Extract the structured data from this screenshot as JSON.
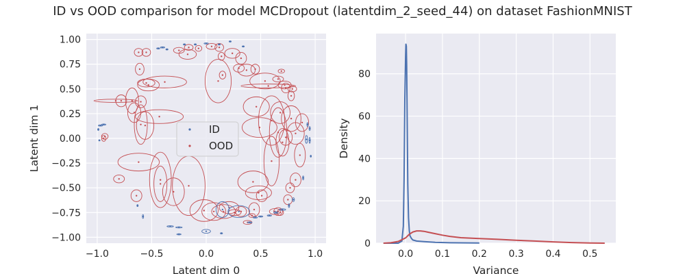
{
  "title": "ID vs OOD comparison for model MCDropout (latentdim_2_seed_44) on dataset FashionMNIST",
  "colors": {
    "id": "#4c72b0",
    "ood": "#c44e52",
    "axes_bg": "#eaeaf2",
    "grid": "#ffffff"
  },
  "chart_data": [
    {
      "type": "scatter",
      "xlabel": "Latent dim 0",
      "ylabel": "Latent dim 1",
      "xlim": [
        -1.1,
        1.1
      ],
      "ylim": [
        -1.06,
        1.06
      ],
      "xticks": [
        -1.0,
        -0.5,
        0.0,
        0.5,
        1.0
      ],
      "xtick_labels": [
        "−1.0",
        "−0.5",
        "0.0",
        "0.5",
        "1.0"
      ],
      "yticks": [
        1.0,
        0.75,
        0.5,
        0.25,
        0.0,
        -0.25,
        -0.5,
        -0.75,
        -1.0
      ],
      "ytick_labels": [
        "1.00",
        "0.75",
        "0.50",
        "0.25",
        "0.00",
        "−0.25",
        "−0.50",
        "−0.75",
        "−1.00"
      ],
      "grid": true,
      "legend": {
        "position": "center",
        "entries": [
          "ID",
          "OOD"
        ]
      },
      "series": [
        {
          "name": "ID",
          "note_shape": "points with uncertainty ellipses [x, y, rx, ry]",
          "ellipses": [
            [
              -0.97,
              0.13,
              0.02,
              0.006
            ],
            [
              -0.94,
              0.14,
              0.02,
              0.006
            ],
            [
              -0.99,
              0.09,
              0.006,
              0.01
            ],
            [
              -0.98,
              -0.02,
              0.006,
              0.006
            ],
            [
              0.93,
              0.14,
              0.006,
              0.02
            ],
            [
              0.95,
              0.1,
              0.006,
              0.02
            ],
            [
              0.95,
              -0.02,
              0.006,
              0.03
            ],
            [
              0.92,
              -0.01,
              0.01,
              0.04
            ],
            [
              0.96,
              -0.18,
              0.004,
              0.01
            ],
            [
              0.89,
              -0.4,
              0.006,
              0.02
            ],
            [
              0.8,
              -0.62,
              0.01,
              0.02
            ],
            [
              0.76,
              -0.68,
              0.006,
              0.02
            ],
            [
              0.7,
              -0.72,
              0.03,
              0.008
            ],
            [
              0.64,
              -0.75,
              0.02,
              0.008
            ],
            [
              0.58,
              -0.78,
              0.02,
              0.006
            ],
            [
              0.5,
              -0.79,
              0.02,
              0.006
            ],
            [
              0.45,
              -0.8,
              0.02,
              0.006
            ],
            [
              0.4,
              -0.85,
              0.02,
              0.006
            ],
            [
              0.3,
              -0.74,
              0.1,
              0.06
            ],
            [
              0.15,
              -0.72,
              0.06,
              0.08
            ],
            [
              0.14,
              -0.96,
              0.01,
              0.006
            ],
            [
              0.0,
              -0.94,
              0.04,
              0.02
            ],
            [
              -0.25,
              -0.9,
              0.03,
              0.006
            ],
            [
              -0.33,
              -0.89,
              0.03,
              0.006
            ],
            [
              -0.25,
              -0.97,
              0.02,
              0.006
            ],
            [
              -0.58,
              -0.79,
              0.006,
              0.02
            ],
            [
              -0.63,
              -0.68,
              0.006,
              0.01
            ],
            [
              -0.44,
              0.91,
              0.015,
              0.006
            ],
            [
              -0.4,
              0.92,
              0.02,
              0.006
            ],
            [
              -0.36,
              0.9,
              0.01,
              0.006
            ],
            [
              -0.2,
              0.95,
              0.01,
              0.006
            ],
            [
              -0.1,
              0.95,
              0.01,
              0.006
            ],
            [
              0.0,
              0.96,
              0.02,
              0.006
            ],
            [
              0.22,
              0.98,
              0.01,
              0.006
            ],
            [
              0.12,
              0.95,
              0.01,
              0.006
            ],
            [
              0.34,
              0.93,
              0.01,
              0.006
            ]
          ]
        },
        {
          "name": "OOD",
          "note_shape": "points with uncertainty ellipses [x, y, rx, ry]",
          "ellipses": [
            [
              -0.83,
              0.38,
              0.2,
              0.016
            ],
            [
              -0.78,
              0.38,
              0.05,
              0.06
            ],
            [
              -0.68,
              0.38,
              0.06,
              0.13
            ],
            [
              -0.6,
              0.37,
              0.05,
              0.06
            ],
            [
              -0.66,
              0.26,
              0.06,
              0.1
            ],
            [
              -0.6,
              0.14,
              0.06,
              0.2
            ],
            [
              -0.56,
              0.13,
              0.08,
              0.14
            ],
            [
              -0.43,
              0.22,
              0.22,
              0.07
            ],
            [
              -0.61,
              0.7,
              0.04,
              0.06
            ],
            [
              -0.53,
              0.54,
              0.1,
              0.06
            ],
            [
              -0.55,
              0.56,
              0.08,
              0.04
            ],
            [
              -0.38,
              0.57,
              0.2,
              0.06
            ],
            [
              -0.62,
              0.87,
              0.04,
              0.04
            ],
            [
              -0.55,
              0.87,
              0.04,
              0.04
            ],
            [
              -0.93,
              0.02,
              0.03,
              0.03
            ],
            [
              -0.94,
              0.0,
              0.02,
              0.03
            ],
            [
              -0.62,
              -0.24,
              0.19,
              0.09
            ],
            [
              -0.42,
              -0.42,
              0.1,
              0.28
            ],
            [
              -0.42,
              -0.46,
              0.06,
              0.18
            ],
            [
              -0.3,
              -0.54,
              0.1,
              0.14
            ],
            [
              -0.16,
              -0.48,
              0.15,
              0.3
            ],
            [
              -0.8,
              -0.41,
              0.05,
              0.04
            ],
            [
              -0.64,
              -0.58,
              0.05,
              0.06
            ],
            [
              -0.25,
              0.89,
              0.05,
              0.03
            ],
            [
              -0.16,
              0.92,
              0.04,
              0.03
            ],
            [
              -0.07,
              0.91,
              0.03,
              0.03
            ],
            [
              -0.17,
              0.85,
              0.08,
              0.05
            ],
            [
              0.05,
              0.93,
              0.05,
              0.03
            ],
            [
              0.12,
              0.92,
              0.04,
              0.04
            ],
            [
              0.14,
              0.83,
              0.03,
              0.04
            ],
            [
              0.24,
              0.86,
              0.07,
              0.05
            ],
            [
              0.32,
              0.81,
              0.05,
              0.06
            ],
            [
              0.3,
              0.71,
              0.05,
              0.04
            ],
            [
              0.37,
              0.69,
              0.08,
              0.06
            ],
            [
              0.45,
              0.7,
              0.04,
              0.05
            ],
            [
              0.15,
              0.64,
              0.03,
              0.04
            ],
            [
              0.11,
              0.58,
              0.12,
              0.22
            ],
            [
              0.54,
              0.58,
              0.14,
              0.08
            ],
            [
              0.57,
              0.53,
              0.25,
              0.02
            ],
            [
              0.66,
              0.6,
              0.05,
              0.03
            ],
            [
              0.72,
              0.54,
              0.06,
              0.04
            ],
            [
              0.73,
              0.51,
              0.04,
              0.05
            ],
            [
              0.79,
              0.5,
              0.04,
              0.03
            ],
            [
              0.69,
              0.68,
              0.03,
              0.02
            ],
            [
              0.78,
              0.43,
              0.03,
              0.05
            ],
            [
              0.68,
              0.26,
              0.09,
              0.11
            ],
            [
              0.78,
              0.2,
              0.09,
              0.13
            ],
            [
              0.6,
              0.18,
              0.12,
              0.25
            ],
            [
              0.46,
              0.32,
              0.12,
              0.1
            ],
            [
              0.49,
              0.11,
              0.16,
              0.1
            ],
            [
              0.66,
              0.06,
              0.08,
              0.25
            ],
            [
              0.7,
              -0.04,
              0.06,
              0.14
            ],
            [
              0.73,
              0.01,
              0.06,
              0.08
            ],
            [
              0.82,
              0.05,
              0.08,
              0.11
            ],
            [
              0.88,
              0.16,
              0.06,
              0.09
            ],
            [
              0.86,
              -0.17,
              0.05,
              0.12
            ],
            [
              0.82,
              -0.42,
              0.05,
              0.07
            ],
            [
              0.77,
              -0.5,
              0.04,
              0.05
            ],
            [
              0.75,
              -0.62,
              0.04,
              0.05
            ],
            [
              0.63,
              -0.74,
              0.05,
              0.03
            ],
            [
              0.66,
              -0.74,
              0.04,
              0.04
            ],
            [
              0.68,
              -0.75,
              0.03,
              0.03
            ],
            [
              0.43,
              -0.44,
              0.14,
              0.11
            ],
            [
              0.48,
              -0.55,
              0.12,
              0.07
            ],
            [
              0.6,
              -0.23,
              0.07,
              0.25
            ],
            [
              0.44,
              -0.72,
              0.05,
              0.07
            ],
            [
              0.51,
              -0.58,
              0.05,
              0.06
            ],
            [
              0.32,
              -0.74,
              0.05,
              0.05
            ],
            [
              -0.02,
              -0.73,
              0.13,
              0.11
            ],
            [
              0.07,
              -0.74,
              0.11,
              0.09
            ],
            [
              0.16,
              -0.74,
              0.11,
              0.07
            ],
            [
              0.21,
              -0.7,
              0.09,
              0.06
            ],
            [
              0.26,
              -0.75,
              0.06,
              0.03
            ],
            [
              0.38,
              -0.85,
              0.04,
              0.02
            ],
            [
              0.42,
              -0.78,
              0.03,
              0.02
            ]
          ]
        }
      ]
    },
    {
      "type": "line",
      "xlabel": "Variance",
      "ylabel": "Density",
      "xlim": [
        -0.08,
        0.57
      ],
      "ylim": [
        0,
        99
      ],
      "xticks": [
        0.0,
        0.1,
        0.2,
        0.3,
        0.4,
        0.5
      ],
      "xtick_labels": [
        "0.0",
        "0.1",
        "0.2",
        "0.3",
        "0.4",
        "0.5"
      ],
      "yticks": [
        0,
        20,
        40,
        60,
        80
      ],
      "ytick_labels": [
        "0",
        "20",
        "40",
        "60",
        "80"
      ],
      "grid": true,
      "series": [
        {
          "color_key": "id",
          "x": [
            -0.06,
            -0.02,
            -0.01,
            -0.006,
            -0.004,
            -0.002,
            0.0,
            0.001,
            0.002,
            0.003,
            0.004,
            0.005,
            0.006,
            0.008,
            0.01,
            0.012,
            0.016,
            0.02,
            0.03,
            0.05,
            0.08,
            0.12,
            0.2
          ],
          "y": [
            0,
            0,
            1,
            8,
            30,
            68,
            88,
            94,
            93,
            84,
            66,
            45,
            28,
            12,
            6,
            3.5,
            2.2,
            1.5,
            1.0,
            0.7,
            0.4,
            0.2,
            0.1
          ]
        },
        {
          "color_key": "ood",
          "x": [
            -0.06,
            -0.04,
            -0.02,
            0.0,
            0.01,
            0.02,
            0.03,
            0.04,
            0.05,
            0.06,
            0.08,
            0.1,
            0.12,
            0.15,
            0.2,
            0.25,
            0.3,
            0.35,
            0.4,
            0.45,
            0.5,
            0.54
          ],
          "y": [
            0,
            0.2,
            0.8,
            2.5,
            4.2,
            5.3,
            5.8,
            5.8,
            5.6,
            5.2,
            4.5,
            3.8,
            3.2,
            2.6,
            2.2,
            1.8,
            1.4,
            1.0,
            0.6,
            0.3,
            0.1,
            0.0
          ]
        }
      ]
    }
  ]
}
